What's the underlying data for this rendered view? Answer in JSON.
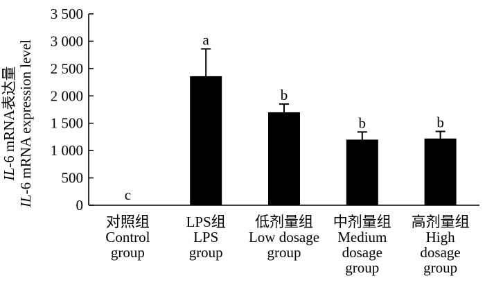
{
  "chart_data": {
    "type": "bar",
    "categories": [
      [
        "对照组",
        "Control",
        "group"
      ],
      [
        "LPS组",
        "LPS",
        "group"
      ],
      [
        "低剂量组",
        "Low dosage",
        "group"
      ],
      [
        "中剂量组",
        "Medium",
        "dosage",
        "group"
      ],
      [
        "高剂量组",
        "High",
        "dosage",
        "group"
      ]
    ],
    "values": [
      0,
      2360,
      1700,
      1200,
      1220
    ],
    "errors": [
      0,
      500,
      150,
      140,
      130
    ],
    "significance_labels": [
      "c",
      "a",
      "b",
      "b",
      "b"
    ],
    "ylabel_lines": [
      {
        "italic": "IL",
        "rest": "-6 mRNA表达量"
      },
      {
        "italic": "IL",
        "rest": "-6 mRNA expression  level"
      }
    ],
    "ylim": [
      0,
      3500
    ],
    "yticks": [
      0,
      500,
      1000,
      1500,
      2000,
      2500,
      3000,
      3500
    ],
    "ytick_labels": [
      "0",
      "500",
      "1 000",
      "1 500",
      "2 000",
      "2 500",
      "3 000",
      "3 500"
    ],
    "bar_color": "#000000",
    "grid": false,
    "legend": "none"
  }
}
